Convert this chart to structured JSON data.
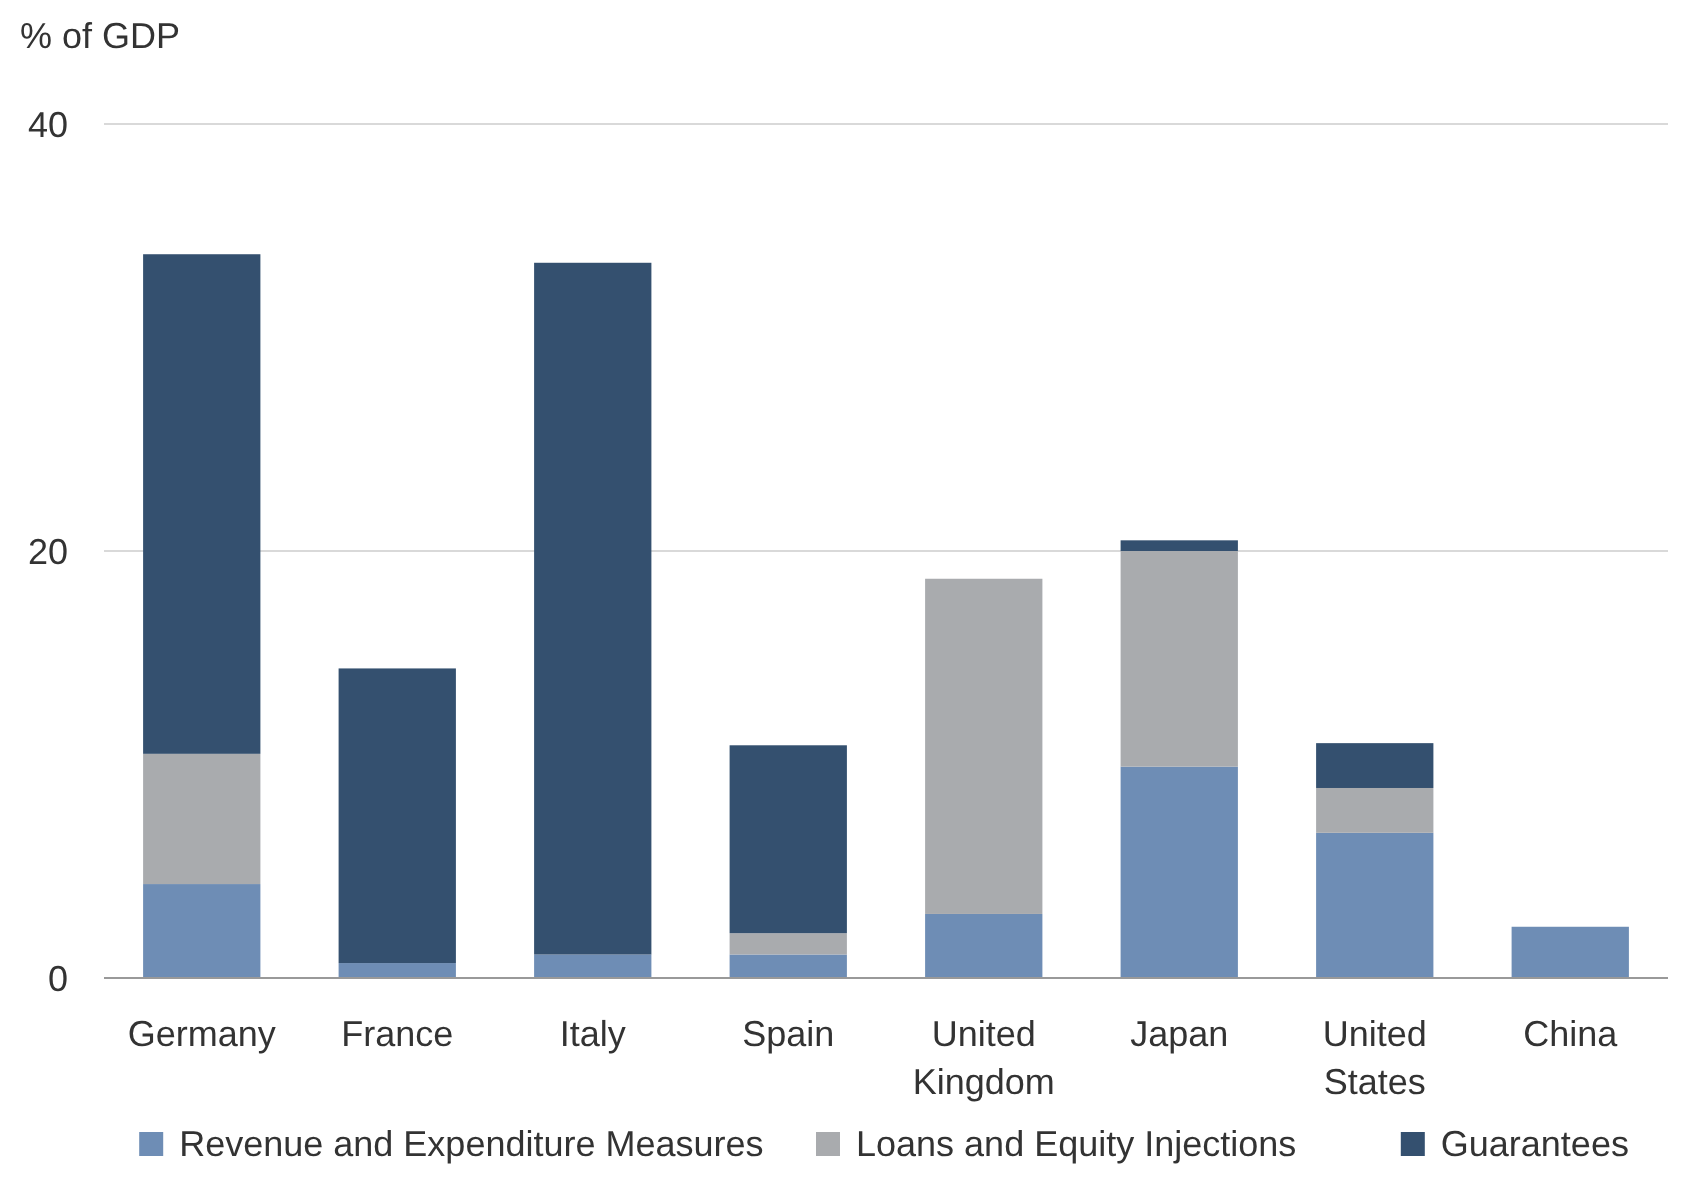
{
  "chart_data": {
    "type": "bar",
    "ylabel": "% of GDP",
    "categories": [
      "Germany",
      "France",
      "Italy",
      "Spain",
      "United Kingdom",
      "Japan",
      "United States",
      "China"
    ],
    "series": [
      {
        "name": "Revenue and Expenditure Measures",
        "color": "#6e8db5",
        "values": [
          4.4,
          0.7,
          1.1,
          1.1,
          3.0,
          9.9,
          6.8,
          2.4
        ]
      },
      {
        "name": "Loans and Equity Injections",
        "color": "#a9abae",
        "values": [
          6.1,
          null,
          null,
          1.0,
          15.7,
          10.1,
          2.1,
          null
        ]
      },
      {
        "name": "Guarantees",
        "color": "#34506f",
        "values": [
          23.4,
          13.8,
          32.4,
          8.8,
          null,
          0.5,
          2.1,
          null
        ]
      }
    ],
    "stacked": true,
    "ylim": [
      0,
      40
    ],
    "yticks": [
      0,
      20,
      40
    ],
    "grid": "y",
    "legend": "bottom"
  }
}
